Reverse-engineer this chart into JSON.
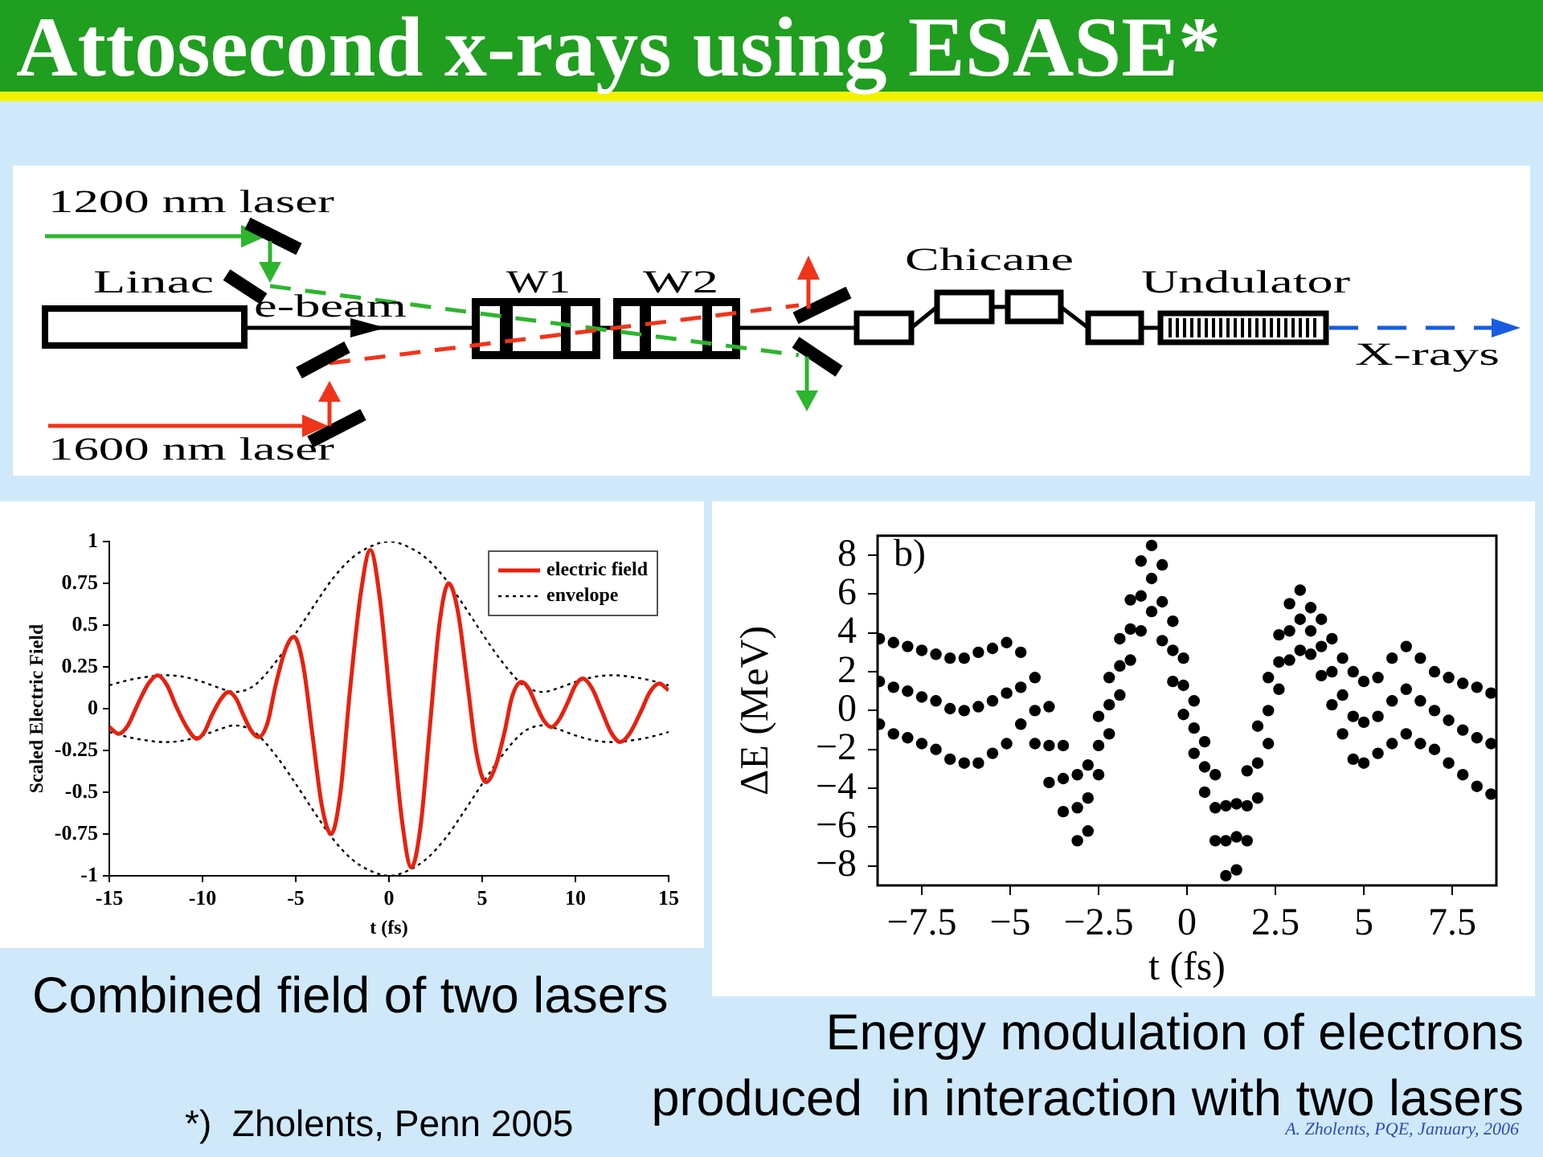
{
  "chart_data": [
    {
      "type": "other",
      "title": "Attosecond x-rays using ESASE*",
      "annotations": [
        "1200 nm laser",
        "Linac",
        "e-beam",
        "W1",
        "W2",
        "Chicane",
        "Undulator",
        "X-rays",
        "1600 nm laser"
      ]
    },
    {
      "type": "line",
      "xlabel": "t (fs)",
      "ylabel": "Scaled Electric Field",
      "annotations": [
        "Combined field of two lasers",
        "*)  Zholents, Penn 2005"
      ],
      "xlim": [
        -15,
        15
      ],
      "xticks": [
        -15,
        -10,
        -5,
        0,
        5,
        10,
        15
      ],
      "ylim": [
        -1,
        1
      ],
      "yticks": [
        -1,
        -0.75,
        -0.5,
        -0.25,
        0,
        0.25,
        0.5,
        0.75,
        1
      ],
      "legend": "top right",
      "series": [
        {
          "name": "electric field",
          "color": "#e8210f",
          "x": [
            -15,
            -14.5,
            -14,
            -13.5,
            -12.9,
            -12.4,
            -11.9,
            -11.4,
            -10.8,
            -10.3,
            -9.9,
            -9.5,
            -9,
            -8.6,
            -8.2,
            -7.8,
            -7.4,
            -7,
            -6.5,
            -6.1,
            -5.6,
            -5.1,
            -4.6,
            -4.1,
            -3.6,
            -3.1,
            -2.6,
            -2.1,
            -1.5,
            -1,
            -0.5,
            0.1,
            0.7,
            1.2,
            1.7,
            2.2,
            2.7,
            3.2,
            3.7,
            4.2,
            4.7,
            5.2,
            5.7,
            6.2,
            6.6,
            7.1,
            7.5,
            7.9,
            8.3,
            8.7,
            9.1,
            9.6,
            10,
            10.4,
            10.9,
            11.4,
            11.9,
            12.4,
            12.9,
            13.5,
            14,
            14.5,
            15
          ],
          "values": [
            -0.11,
            -0.15,
            -0.1,
            0.02,
            0.15,
            0.2,
            0.14,
            0.01,
            -0.12,
            -0.18,
            -0.14,
            -0.04,
            0.06,
            0.1,
            0.06,
            -0.04,
            -0.13,
            -0.17,
            -0.08,
            0.13,
            0.34,
            0.43,
            0.26,
            -0.16,
            -0.58,
            -0.75,
            -0.5,
            0.1,
            0.7,
            0.95,
            0.67,
            0,
            -0.67,
            -0.95,
            -0.7,
            -0.1,
            0.5,
            0.75,
            0.58,
            0.16,
            -0.27,
            -0.44,
            -0.35,
            -0.14,
            0.07,
            0.16,
            0.12,
            0.02,
            -0.07,
            -0.11,
            -0.07,
            0.04,
            0.14,
            0.18,
            0.12,
            -0.01,
            -0.14,
            -0.2,
            -0.15,
            -0.02,
            0.1,
            0.15,
            0.11
          ]
        },
        {
          "name": "envelope",
          "color": "#000000",
          "line_style": "dotted",
          "x": [
            -15,
            -14,
            -13,
            -12,
            -11,
            -10,
            -9,
            -8.3,
            -7.5,
            -7,
            -6,
            -5,
            -4,
            -3,
            -2,
            -1,
            0,
            1,
            2,
            3,
            4,
            5,
            6,
            7,
            7.5,
            8.3,
            9,
            10,
            11,
            12,
            13,
            14,
            15
          ],
          "values": [
            0.14,
            0.17,
            0.19,
            0.2,
            0.19,
            0.16,
            0.12,
            0.1,
            0.12,
            0.16,
            0.29,
            0.45,
            0.62,
            0.78,
            0.9,
            0.97,
            1,
            0.97,
            0.9,
            0.78,
            0.62,
            0.45,
            0.29,
            0.16,
            0.12,
            0.1,
            0.12,
            0.16,
            0.19,
            0.2,
            0.19,
            0.17,
            0.14
          ]
        },
        {
          "color": "#000000",
          "line_style": "dotted",
          "x": [
            -15,
            -14,
            -13,
            -12,
            -11,
            -10,
            -9,
            -8.3,
            -7.5,
            -7,
            -6,
            -5,
            -4,
            -3,
            -2,
            -1,
            0,
            1,
            2,
            3,
            4,
            5,
            6,
            7,
            7.5,
            8.3,
            9,
            10,
            11,
            12,
            13,
            14,
            15
          ],
          "values": [
            -0.14,
            -0.17,
            -0.19,
            -0.2,
            -0.19,
            -0.16,
            -0.12,
            -0.1,
            -0.12,
            -0.16,
            -0.29,
            -0.45,
            -0.62,
            -0.78,
            -0.9,
            -0.97,
            -1,
            -0.97,
            -0.9,
            -0.78,
            -0.62,
            -0.45,
            -0.29,
            -0.16,
            -0.12,
            -0.1,
            -0.12,
            -0.16,
            -0.19,
            -0.2,
            -0.19,
            -0.17,
            -0.14
          ]
        }
      ]
    },
    {
      "type": "scatter",
      "xlabel": "t (fs)",
      "ylabel": "ΔE (MeV)",
      "annotations": [
        "b)",
        "Energy modulation of electrons\nproduced  in interaction with two lasers",
        "A. Zholents, PQE, January, 2006"
      ],
      "xlim": [
        -8.75,
        8.75
      ],
      "xticks": [
        {
          "value": -7.5,
          "label": "−7.5"
        },
        {
          "value": -5,
          "label": "−5"
        },
        {
          "value": -2.5,
          "label": "−2.5"
        },
        0,
        2.5,
        5,
        7.5
      ],
      "ylim": [
        -9,
        9
      ],
      "yticks": [
        {
          "value": -8,
          "label": "−8"
        },
        {
          "value": -6,
          "label": "−6"
        },
        {
          "value": -4,
          "label": "−4"
        },
        {
          "value": -2,
          "label": "−2"
        },
        0,
        2,
        4,
        6,
        8
      ],
      "marker": "circle",
      "series": [
        {
          "color": "#000000",
          "x": [
            -8.7,
            -8.7,
            -8.7,
            -8.3,
            -8.3,
            -8.3,
            -7.9,
            -7.9,
            -7.9,
            -7.5,
            -7.5,
            -7.5,
            -7.1,
            -7.1,
            -7.1,
            -6.7,
            -6.7,
            -6.7,
            -6.3,
            -6.3,
            -6.3,
            -5.9,
            -5.9,
            -5.9,
            -5.5,
            -5.5,
            -5.5,
            -5.1,
            -5.1,
            -5.1,
            -4.7,
            -4.7,
            -4.7,
            -4.3,
            -4.3,
            -4.3,
            -3.9,
            -3.9,
            -3.9,
            -3.5,
            -3.5,
            -3.5,
            -3.1,
            -3.1,
            -3.1,
            -2.8,
            -2.8,
            -2.8,
            -2.5,
            -2.5,
            -2.5,
            -2.2,
            -2.2,
            -2.2,
            -1.9,
            -1.9,
            -1.9,
            -1.6,
            -1.6,
            -1.6,
            -1.3,
            -1.3,
            -1.3,
            -1,
            -1,
            -1,
            -0.7,
            -0.7,
            -0.7,
            -0.4,
            -0.4,
            -0.4,
            -0.1,
            -0.1,
            -0.1,
            0.2,
            0.2,
            0.2,
            0.5,
            0.5,
            0.5,
            0.8,
            0.8,
            0.8,
            1.1,
            1.1,
            1.1,
            1.4,
            1.4,
            1.4,
            1.7,
            1.7,
            1.7,
            2,
            2,
            2,
            2.3,
            2.3,
            2.3,
            2.6,
            2.6,
            2.6,
            2.9,
            2.9,
            2.9,
            3.2,
            3.2,
            3.2,
            3.5,
            3.5,
            3.5,
            3.8,
            3.8,
            3.8,
            4.1,
            4.1,
            4.1,
            4.4,
            4.4,
            4.4,
            4.7,
            4.7,
            4.7,
            5,
            5,
            5,
            5.4,
            5.4,
            5.4,
            5.8,
            5.8,
            5.8,
            6.2,
            6.2,
            6.2,
            6.6,
            6.6,
            6.6,
            7,
            7,
            7,
            7.4,
            7.4,
            7.4,
            7.8,
            7.8,
            7.8,
            8.2,
            8.2,
            8.2,
            8.6,
            8.6,
            8.6
          ],
          "values": [
            3.7,
            1.5,
            -0.7,
            3.5,
            1.2,
            -1.2,
            3.3,
            1,
            -1.4,
            3.1,
            0.7,
            -1.7,
            2.9,
            0.5,
            -2,
            2.7,
            0.1,
            -2.5,
            2.7,
            0,
            -2.7,
            3,
            0.2,
            -2.7,
            3.2,
            0.5,
            -2.2,
            3.5,
            0.9,
            -1.7,
            3,
            1.2,
            -0.7,
            1.7,
            0,
            -1.7,
            0.2,
            -1.8,
            -3.7,
            -1.8,
            -3.5,
            -5.2,
            -3.3,
            -5,
            -6.7,
            -2.8,
            -4.5,
            -6.2,
            -0.3,
            -1.8,
            -3.3,
            1.7,
            0.3,
            -1.2,
            3.7,
            2.3,
            0.8,
            5.7,
            4.2,
            2.6,
            7.7,
            5.9,
            4.1,
            8.5,
            6.8,
            5.1,
            7.5,
            5.6,
            3.6,
            4.6,
            3.1,
            1.5,
            2.7,
            1.3,
            -0.2,
            0.5,
            -0.9,
            -2.2,
            -1.6,
            -2.9,
            -4.2,
            -3.3,
            -5,
            -6.7,
            -4.9,
            -6.7,
            -8.5,
            -4.8,
            -6.5,
            -8.2,
            -3.1,
            -4.9,
            -6.7,
            -0.8,
            -2.7,
            -4.5,
            1.7,
            0,
            -1.7,
            3.9,
            2.5,
            1.1,
            5.5,
            4.1,
            2.6,
            6.2,
            4.7,
            3.1,
            5.3,
            4.1,
            2.9,
            4.7,
            3.3,
            1.8,
            3.7,
            2,
            0.3,
            2.7,
            0.8,
            -1.2,
            2,
            -0.3,
            -2.5,
            1.5,
            -0.6,
            -2.7,
            1.7,
            -0.3,
            -2.2,
            2.7,
            0.5,
            -1.7,
            3.3,
            1.1,
            -1.2,
            2.7,
            0.5,
            -1.7,
            2,
            0,
            -2,
            1.7,
            -0.5,
            -2.7,
            1.4,
            -1,
            -3.3,
            1.2,
            -1.4,
            -3.9,
            0.9,
            -1.7,
            -4.3
          ]
        }
      ]
    }
  ]
}
